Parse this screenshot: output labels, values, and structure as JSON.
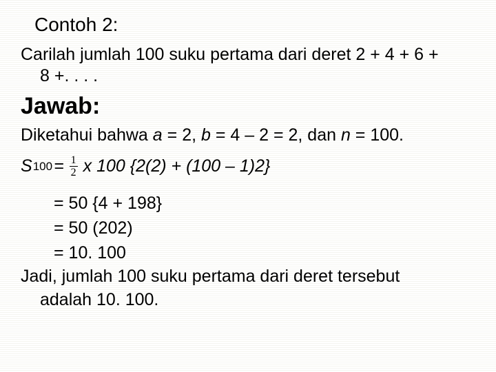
{
  "title": "Contoh 2:",
  "problem_line1": "Carilah jumlah 100 suku pertama dari deret 2 + 4 + 6 +",
  "problem_line2": "8 +. . . .",
  "jawab": "Jawab:",
  "known_prefix": "Diketahui bahwa ",
  "known_a": "a",
  "known_a_eq": " = 2, ",
  "known_b": "b",
  "known_b_eq": " = 4 – 2 = 2, dan ",
  "known_n": "n",
  "known_n_eq": " = 100.",
  "S": "S",
  "sub100": "100",
  "eq": "=",
  "frac_num": "1",
  "frac_den": "2",
  "formula_rest": " x 100 {2(2) + (100 – 1)2}",
  "step1": "= 50 {4 + 198}",
  "step2": "= 50 (202)",
  "step3": "= 10. 100",
  "concl_line1": "Jadi, jumlah 100 suku pertama dari deret tersebut",
  "concl_line2": "adalah 10. 100."
}
